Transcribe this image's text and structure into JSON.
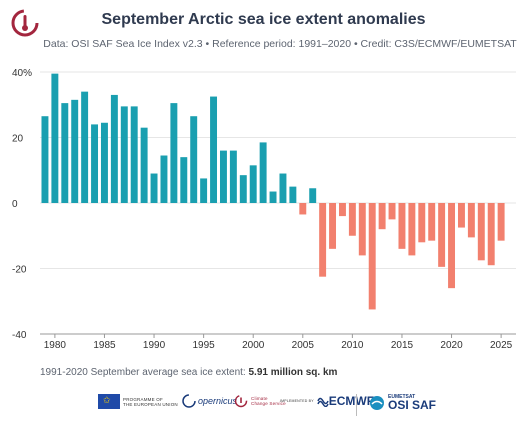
{
  "header": {
    "title": "September Arctic sea ice extent anomalies",
    "subtitle": "Data: OSI SAF Sea Ice Index v2.3 • Reference period: 1991–2020 • Credit: C3S/ECMWF/EUMETSAT"
  },
  "footnote": {
    "label": "1991-2020 September average sea ice extent: ",
    "value": "5.91 million sq. km"
  },
  "logos": {
    "eu_text_line1": "PROGRAMME OF",
    "eu_text_line2": "THE EUROPEAN UNION",
    "copernicus": "opernicus",
    "climate_line1": "Climate",
    "climate_line2": "Change Service",
    "implemented_by": "IMPLEMENTED BY",
    "ecmwf": "ECMWF",
    "eumetsat": "EUMETSAT",
    "osisaf": "OSI SAF"
  },
  "colors": {
    "positive": "#1a9fb0",
    "negative": "#f2806e",
    "text": "#333333",
    "title": "#2f3a4f",
    "grid": "#e6e6e6",
    "brand": "#1a3b7a"
  },
  "chart_data": {
    "type": "bar",
    "title": "September Arctic sea ice extent anomalies",
    "xlabel": "",
    "ylabel": "",
    "ylim": [
      -40,
      40
    ],
    "y_ticks": [
      "-40",
      "-20",
      "0",
      "20",
      "40%"
    ],
    "y_tick_values": [
      -40,
      -20,
      0,
      20,
      40
    ],
    "x_ticks": [
      1980,
      1985,
      1990,
      1995,
      2000,
      2005,
      2010,
      2015,
      2020,
      2025
    ],
    "grid": true,
    "x": [
      1979,
      1980,
      1981,
      1982,
      1983,
      1984,
      1985,
      1986,
      1987,
      1988,
      1989,
      1990,
      1991,
      1992,
      1993,
      1994,
      1995,
      1996,
      1997,
      1998,
      1999,
      2000,
      2001,
      2002,
      2003,
      2004,
      2005,
      2006,
      2007,
      2008,
      2009,
      2010,
      2011,
      2012,
      2013,
      2014,
      2015,
      2016,
      2017,
      2018,
      2019,
      2020,
      2021,
      2022,
      2023,
      2024,
      2025
    ],
    "values": [
      26.5,
      39.5,
      30.5,
      31.5,
      34,
      24,
      24.5,
      33,
      29.5,
      29.5,
      23,
      9,
      14.5,
      30.5,
      14,
      26.5,
      7.5,
      32.5,
      16,
      16,
      8.5,
      11.5,
      18.5,
      3.5,
      9,
      5,
      -3.5,
      4.5,
      -22.5,
      -14,
      -4,
      -10,
      -16,
      -32.5,
      -8,
      -5,
      -14,
      -16,
      -12,
      -11.5,
      -19.5,
      -26,
      -7.5,
      -10.5,
      -17.5,
      -19,
      -11.5
    ]
  }
}
